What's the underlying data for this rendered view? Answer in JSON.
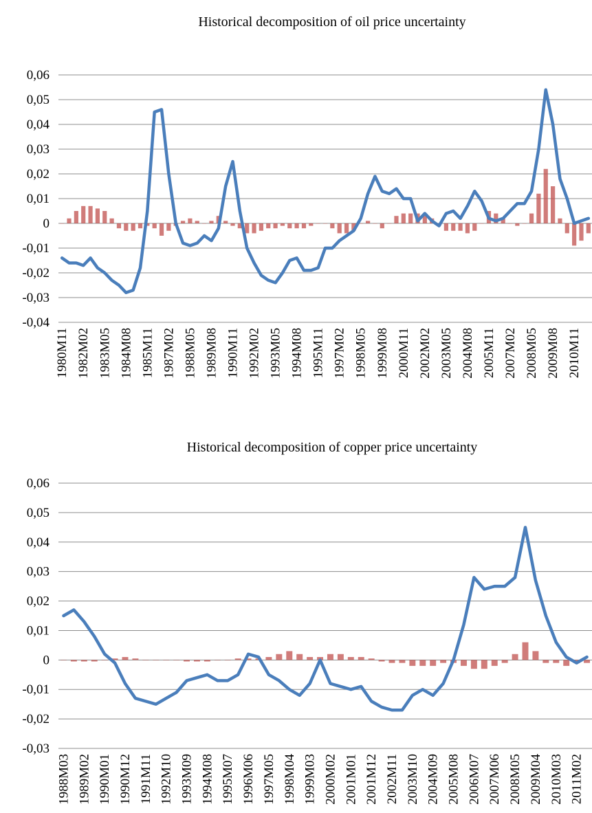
{
  "chart_data": [
    {
      "type": "line",
      "title": "Historical decomposition of oil price uncertainty",
      "categories": [
        "1980M11",
        null,
        null,
        "1982M02",
        null,
        null,
        "1983M05",
        null,
        null,
        "1984M08",
        null,
        null,
        "1985M11",
        null,
        null,
        "1987M02",
        null,
        null,
        "1988M05",
        null,
        null,
        "1989M08",
        null,
        null,
        "1990M11",
        null,
        null,
        "1992M02",
        null,
        null,
        "1993M05",
        null,
        null,
        "1994M08",
        null,
        null,
        "1995M11",
        null,
        null,
        "1997M02",
        null,
        null,
        "1998M05",
        null,
        null,
        "1999M08",
        null,
        null,
        "2000M11",
        null,
        null,
        "2002M02",
        null,
        null,
        "2003M05",
        null,
        null,
        "2004M08",
        null,
        null,
        "2005M11",
        null,
        null,
        "2007M02",
        null,
        null,
        "2008M05",
        null,
        null,
        "2009M08",
        null,
        null,
        "2010M11",
        null,
        null
      ],
      "series": [
        {
          "type": "bar",
          "color": "#c0504d",
          "values": [
            0,
            0.002,
            0.005,
            0.007,
            0.007,
            0.006,
            0.005,
            0.002,
            -0.002,
            -0.003,
            -0.003,
            -0.002,
            -0.001,
            -0.002,
            -0.005,
            -0.003,
            -0.001,
            0.001,
            0.002,
            0.001,
            0,
            0.001,
            0.003,
            0.001,
            -0.001,
            -0.002,
            -0.004,
            -0.004,
            -0.003,
            -0.002,
            -0.002,
            -0.001,
            -0.002,
            -0.002,
            -0.002,
            -0.001,
            0,
            0,
            -0.002,
            -0.004,
            -0.004,
            -0.003,
            0,
            0.001,
            0,
            -0.002,
            0,
            0.003,
            0.004,
            0.004,
            0.004,
            0.004,
            0.002,
            -0.001,
            -0.003,
            -0.003,
            -0.003,
            -0.004,
            -0.003,
            0,
            0.005,
            0.004,
            0.002,
            0,
            -0.001,
            0,
            0.004,
            0.012,
            0.022,
            0.015,
            0.002,
            -0.004,
            -0.009,
            -0.007,
            -0.004
          ]
        },
        {
          "type": "line",
          "color": "#4a7ebb",
          "values": [
            -0.014,
            -0.016,
            -0.016,
            -0.017,
            -0.014,
            -0.018,
            -0.02,
            -0.023,
            -0.025,
            -0.028,
            -0.027,
            -0.018,
            0.005,
            0.045,
            0.046,
            0.02,
            0,
            -0.008,
            -0.009,
            -0.008,
            -0.005,
            -0.007,
            -0.002,
            0.015,
            0.025,
            0.005,
            -0.01,
            -0.016,
            -0.021,
            -0.023,
            -0.024,
            -0.02,
            -0.015,
            -0.014,
            -0.019,
            -0.019,
            -0.018,
            -0.01,
            -0.01,
            -0.007,
            -0.005,
            -0.003,
            0.002,
            0.012,
            0.019,
            0.013,
            0.012,
            0.014,
            0.01,
            0.01,
            0.001,
            0.004,
            0.001,
            -0.001,
            0.004,
            0.005,
            0.002,
            0.007,
            0.013,
            0.009,
            0.002,
            0.001,
            0.002,
            0.005,
            0.008,
            0.008,
            0.013,
            0.03,
            0.054,
            0.04,
            0.018,
            0.01,
            0,
            0.001,
            0.002
          ]
        }
      ],
      "ylim": [
        -0.04,
        0.06
      ],
      "yticks": [
        {
          "value": -0.04,
          "label": "-0,04"
        },
        {
          "value": -0.03,
          "label": "-0,03"
        },
        {
          "value": -0.02,
          "label": "-0,02"
        },
        {
          "value": -0.01,
          "label": "-0,01"
        },
        0,
        {
          "value": 0.01,
          "label": "0,01"
        },
        {
          "value": 0.02,
          "label": "0,02"
        },
        {
          "value": 0.03,
          "label": "0,03"
        },
        {
          "value": 0.04,
          "label": "0,04"
        },
        {
          "value": 0.05,
          "label": "0,05"
        },
        {
          "value": 0.06,
          "label": "0,06"
        }
      ],
      "grid": true
    },
    {
      "type": "line",
      "title": "Historical decomposition of copper price uncertainty",
      "categories": [
        "1988M03",
        null,
        "1989M02",
        null,
        "1990M01",
        null,
        "1990M12",
        null,
        "1991M11",
        null,
        "1992M10",
        null,
        "1993M09",
        null,
        "1994M08",
        null,
        "1995M07",
        null,
        "1996M06",
        null,
        "1997M05",
        null,
        "1998M04",
        null,
        "1999M03",
        null,
        "2000M02",
        null,
        "2001M01",
        null,
        "2001M12",
        null,
        "2002M11",
        null,
        "2003M10",
        null,
        "2004M09",
        null,
        "2005M08",
        null,
        "2006M07",
        null,
        "2007M06",
        null,
        "2008M05",
        null,
        "2009M04",
        null,
        "2010M03",
        null,
        "2011M02",
        null
      ],
      "series": [
        {
          "type": "bar",
          "color": "#c0504d",
          "values": [
            0,
            -0.0005,
            -0.0005,
            -0.0005,
            0,
            0.0005,
            0.001,
            0.0005,
            0,
            0,
            0,
            0,
            -0.0005,
            -0.0005,
            -0.0005,
            0,
            0,
            0.0005,
            0.0005,
            0.0005,
            0.001,
            0.002,
            0.003,
            0.002,
            0.001,
            0.001,
            0.002,
            0.002,
            0.001,
            0.001,
            0.0005,
            -0.0005,
            -0.001,
            -0.001,
            -0.002,
            -0.002,
            -0.002,
            -0.001,
            -0.001,
            -0.002,
            -0.003,
            -0.003,
            -0.002,
            -0.001,
            0.002,
            0.006,
            0.003,
            -0.001,
            -0.001,
            -0.002,
            -0.001,
            -0.001
          ]
        },
        {
          "type": "line",
          "color": "#4a7ebb",
          "values": [
            0.015,
            0.017,
            0.013,
            0.008,
            0.002,
            -0.001,
            -0.008,
            -0.013,
            -0.014,
            -0.015,
            -0.013,
            -0.011,
            -0.007,
            -0.006,
            -0.005,
            -0.007,
            -0.007,
            -0.005,
            0.002,
            0.001,
            -0.005,
            -0.007,
            -0.01,
            -0.012,
            -0.008,
            0,
            -0.008,
            -0.009,
            -0.01,
            -0.009,
            -0.014,
            -0.016,
            -0.017,
            -0.017,
            -0.012,
            -0.01,
            -0.012,
            -0.008,
            0,
            0.012,
            0.028,
            0.024,
            0.025,
            0.025,
            0.028,
            0.045,
            0.027,
            0.015,
            0.006,
            0.001,
            -0.001,
            0.001
          ]
        }
      ],
      "ylim": [
        -0.03,
        0.06
      ],
      "yticks": [
        {
          "value": -0.03,
          "label": "-0,03"
        },
        {
          "value": -0.02,
          "label": "-0,02"
        },
        {
          "value": -0.01,
          "label": "-0,01"
        },
        0,
        {
          "value": 0.01,
          "label": "0,01"
        },
        {
          "value": 0.02,
          "label": "0,02"
        },
        {
          "value": 0.03,
          "label": "0,03"
        },
        {
          "value": 0.04,
          "label": "0,04"
        },
        {
          "value": 0.05,
          "label": "0,05"
        },
        {
          "value": 0.06,
          "label": "0,06"
        }
      ],
      "grid": true
    }
  ]
}
